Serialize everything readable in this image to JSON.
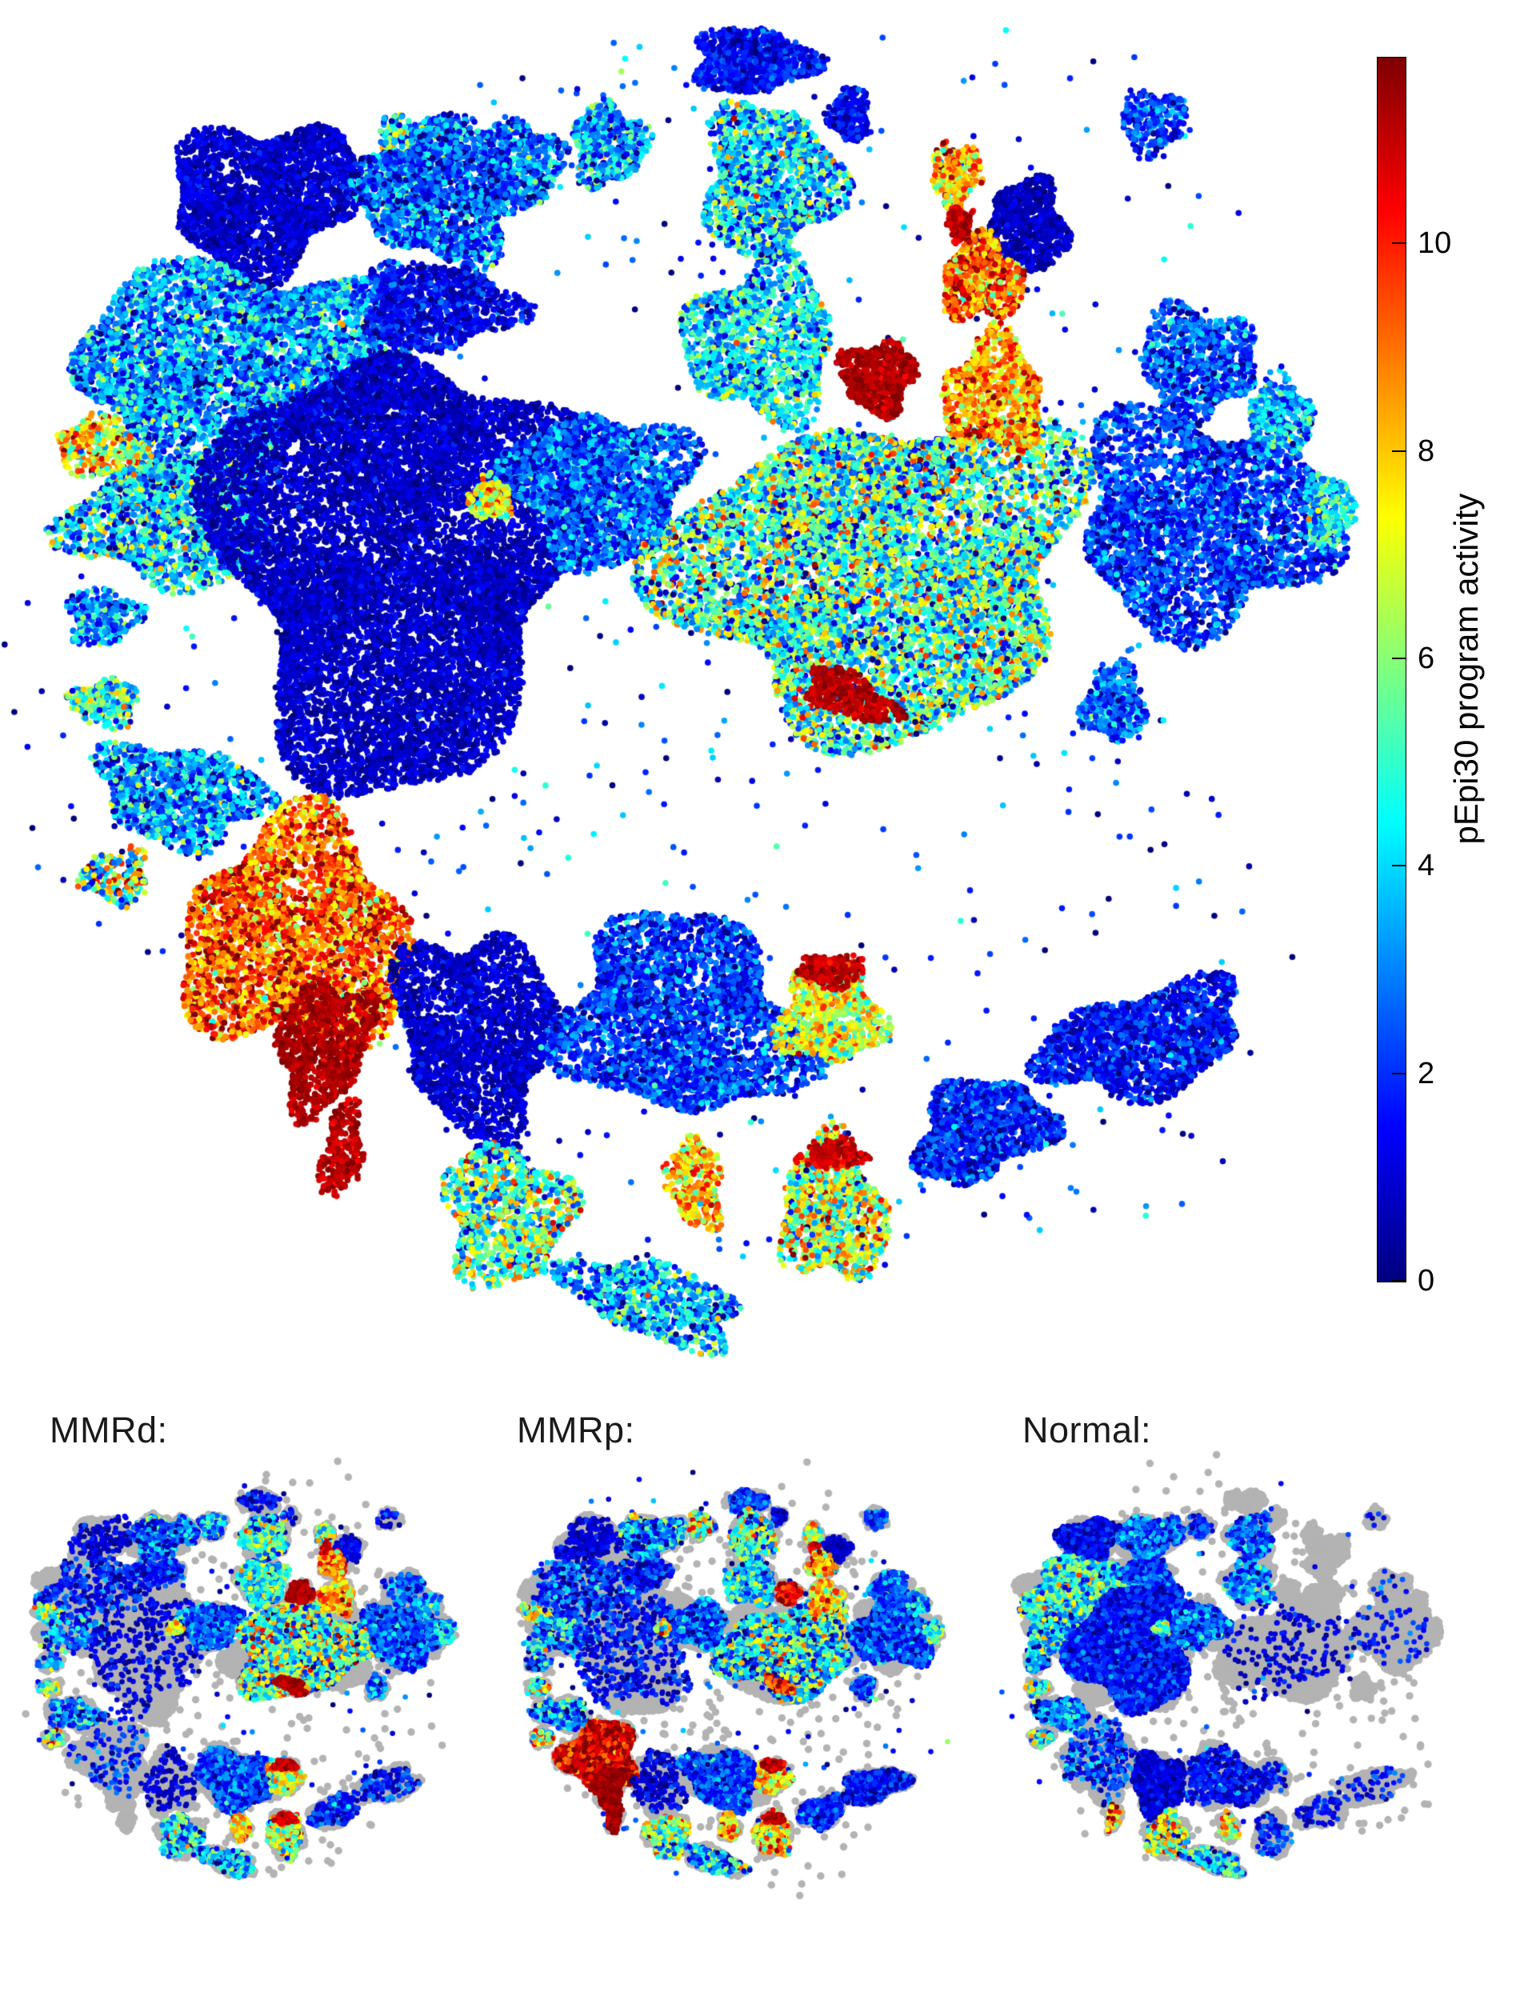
{
  "chart_data": {
    "type": "scatter",
    "title": "",
    "colorbar": {
      "label": "pEpi30 program activity",
      "vmin": 0,
      "vmax": 11.8,
      "ticks": [
        0,
        2,
        4,
        6,
        8,
        10
      ],
      "colormap": "jet"
    },
    "unselected_color": "#b3b3b3",
    "point_color_model": "jet(value/vmax)",
    "clusters": [
      [
        0.5,
        0.48,
        760,
        800,
        0,
        700,
        2.0,
        1.5
      ],
      [
        0.54,
        0.043,
        75,
        40,
        0,
        900,
        1.5,
        0.8
      ],
      [
        0.614,
        0.082,
        26,
        34,
        0,
        250,
        1.3,
        0.7
      ],
      [
        0.43,
        0.104,
        46,
        52,
        0,
        550,
        3.5,
        1.8
      ],
      [
        0.284,
        0.116,
        48,
        62,
        0,
        650,
        4.5,
        2.3
      ],
      [
        0.362,
        0.119,
        52,
        58,
        0,
        600,
        2.8,
        1.5
      ],
      [
        0.168,
        0.142,
        118,
        92,
        -15,
        2600,
        0.9,
        0.5
      ],
      [
        0.301,
        0.139,
        96,
        86,
        0,
        1700,
        2.3,
        1.4
      ],
      [
        0.695,
        0.125,
        31,
        40,
        0,
        320,
        8.0,
        1.5
      ],
      [
        0.749,
        0.163,
        52,
        56,
        0,
        800,
        0.7,
        0.5
      ],
      [
        0.698,
        0.161,
        16,
        22,
        0,
        120,
        11.0,
        0.5
      ],
      [
        0.715,
        0.202,
        50,
        52,
        0,
        650,
        9.0,
        1.6
      ],
      [
        0.149,
        0.264,
        212,
        128,
        -8,
        5200,
        3.2,
        1.6
      ],
      [
        0.047,
        0.326,
        62,
        38,
        20,
        420,
        7.5,
        2.0
      ],
      [
        0.102,
        0.376,
        132,
        82,
        -5,
        2100,
        4.0,
        2.0
      ],
      [
        0.271,
        0.406,
        220,
        272,
        5,
        11000,
        0.8,
        0.5
      ],
      [
        0.301,
        0.221,
        98,
        54,
        0,
        1000,
        1.3,
        0.8
      ],
      [
        0.425,
        0.352,
        112,
        95,
        0,
        2100,
        2.4,
        1.3
      ],
      [
        0.34,
        0.361,
        27,
        27,
        0,
        160,
        7.0,
        1.5
      ],
      [
        0.637,
        0.414,
        255,
        195,
        -10,
        8500,
        5.0,
        2.4
      ],
      [
        0.636,
        0.272,
        46,
        44,
        0,
        700,
        11.3,
        0.4
      ],
      [
        0.724,
        0.285,
        62,
        72,
        0,
        850,
        8.5,
        1.5
      ],
      [
        0.547,
        0.246,
        92,
        98,
        0,
        1500,
        4.0,
        1.7
      ],
      [
        0.879,
        0.262,
        72,
        72,
        0,
        900,
        2.3,
        1.2
      ],
      [
        0.883,
        0.378,
        158,
        132,
        10,
        3200,
        2.0,
        1.1
      ],
      [
        0.98,
        0.369,
        30,
        47,
        0,
        260,
        4.5,
        1.5
      ],
      [
        0.104,
        0.575,
        106,
        62,
        10,
        1200,
        3.0,
        1.7
      ],
      [
        0.193,
        0.679,
        142,
        142,
        0,
        3300,
        9.3,
        1.6
      ],
      [
        0.213,
        0.757,
        55,
        85,
        15,
        900,
        11.3,
        0.4
      ],
      [
        0.227,
        0.834,
        24,
        62,
        10,
        260,
        11.2,
        0.5
      ],
      [
        0.331,
        0.749,
        97,
        132,
        -10,
        2300,
        0.9,
        0.5
      ],
      [
        0.486,
        0.737,
        152,
        122,
        15,
        3300,
        2.0,
        1.1
      ],
      [
        0.599,
        0.734,
        64,
        64,
        0,
        900,
        7.0,
        1.6
      ],
      [
        0.601,
        0.703,
        42,
        20,
        0,
        220,
        11.0,
        0.5
      ],
      [
        0.496,
        0.857,
        34,
        58,
        -12,
        380,
        8.0,
        1.5
      ],
      [
        0.352,
        0.88,
        78,
        88,
        0,
        1100,
        5.5,
        2.2
      ],
      [
        0.463,
        0.942,
        118,
        46,
        18,
        850,
        3.5,
        1.8
      ],
      [
        0.601,
        0.877,
        65,
        90,
        -10,
        1200,
        6.5,
        2.2
      ],
      [
        0.601,
        0.836,
        40,
        20,
        0,
        200,
        11.0,
        0.5
      ],
      [
        0.715,
        0.819,
        88,
        60,
        -20,
        1300,
        1.8,
        1.0
      ],
      [
        0.838,
        0.754,
        130,
        65,
        -15,
        1800,
        1.5,
        0.9
      ],
      [
        0.815,
        0.509,
        38,
        48,
        0,
        420,
        2.5,
        1.2
      ],
      [
        0.942,
        0.301,
        40,
        50,
        0,
        350,
        3.5,
        1.5
      ],
      [
        0.615,
        0.504,
        62,
        26,
        25,
        380,
        11.2,
        0.4
      ],
      [
        0.045,
        0.446,
        45,
        35,
        0,
        300,
        3.0,
        1.5
      ],
      [
        0.047,
        0.509,
        42,
        30,
        0,
        260,
        5.0,
        2.0
      ],
      [
        0.055,
        0.635,
        42,
        35,
        0,
        220,
        6.0,
        3.0
      ],
      [
        0.845,
        0.087,
        40,
        40,
        0,
        260,
        2.0,
        1.0
      ],
      [
        0.553,
        0.13,
        85,
        95,
        0,
        1500,
        4.0,
        2.0
      ]
    ],
    "panels": [
      {
        "id": "main",
        "label": "",
        "mode": "all"
      },
      {
        "id": "mmrd",
        "label": "MMRd:",
        "mode": "overlay",
        "overlay": [
          [
            0,
            0.3,
            1.5,
            1.0
          ],
          [
            1,
            0.15,
            1.5,
            0.8
          ],
          [
            2,
            0.15,
            1.3,
            0.7
          ],
          [
            3,
            0.6,
            3.5,
            1.8
          ],
          [
            4,
            0.6,
            5.0,
            2.3
          ],
          [
            5,
            0.5,
            3.0,
            1.5
          ],
          [
            6,
            0.12,
            1.0,
            0.6
          ],
          [
            7,
            0.3,
            2.5,
            1.4
          ],
          [
            8,
            0.6,
            6.0,
            2.0
          ],
          [
            9,
            0.25,
            1.0,
            0.6
          ],
          [
            10,
            0.8,
            11.0,
            0.5
          ],
          [
            11,
            0.85,
            9.0,
            1.6
          ],
          [
            12,
            0.12,
            1.8,
            1.0
          ],
          [
            13,
            0.4,
            6.0,
            2.0
          ],
          [
            14,
            0.15,
            2.5,
            1.5
          ],
          [
            15,
            0.06,
            1.0,
            0.6
          ],
          [
            16,
            0.3,
            1.5,
            0.8
          ],
          [
            17,
            0.7,
            2.5,
            1.3
          ],
          [
            18,
            1.0,
            7.0,
            1.5
          ],
          [
            19,
            0.85,
            5.5,
            2.6
          ],
          [
            20,
            0.95,
            11.3,
            0.4
          ],
          [
            21,
            0.9,
            8.5,
            1.5
          ],
          [
            22,
            0.8,
            4.5,
            1.7
          ],
          [
            23,
            0.3,
            2.3,
            1.2
          ],
          [
            24,
            0.55,
            2.2,
            1.1
          ],
          [
            25,
            0.8,
            4.5,
            1.5
          ],
          [
            26,
            0.3,
            3.0,
            1.7
          ],
          [
            27,
            0.06,
            2.0,
            1.0
          ],
          [
            28,
            0.03,
            2.0,
            1.0
          ],
          [
            30,
            0.1,
            1.0,
            0.5
          ],
          [
            31,
            0.8,
            2.2,
            1.2
          ],
          [
            32,
            0.9,
            7.0,
            1.6
          ],
          [
            33,
            0.9,
            11.0,
            0.5
          ],
          [
            34,
            0.6,
            8.0,
            1.5
          ],
          [
            35,
            0.55,
            4.0,
            2.0
          ],
          [
            36,
            0.5,
            3.5,
            1.8
          ],
          [
            37,
            0.6,
            6.5,
            2.2
          ],
          [
            38,
            0.6,
            11.0,
            0.5
          ],
          [
            39,
            0.3,
            1.8,
            1.0
          ],
          [
            40,
            0.15,
            1.5,
            0.9
          ],
          [
            41,
            0.4,
            2.5,
            1.2
          ],
          [
            42,
            0.4,
            3.5,
            1.5
          ],
          [
            43,
            0.9,
            11.2,
            0.4
          ],
          [
            44,
            0.2,
            3.0,
            1.5
          ],
          [
            45,
            0.3,
            5.0,
            2.0
          ],
          [
            46,
            0.3,
            6.0,
            3.0
          ],
          [
            47,
            0.2,
            1.5,
            1.0
          ],
          [
            48,
            0.6,
            4.5,
            2.0
          ]
        ]
      },
      {
        "id": "mmrp",
        "label": "MMRp:",
        "mode": "overlay",
        "overlay": [
          [
            0,
            0.4,
            2.0,
            1.5
          ],
          [
            1,
            0.5,
            2.0,
            1.0
          ],
          [
            2,
            0.5,
            1.5,
            0.8
          ],
          [
            3,
            0.85,
            6.0,
            2.5
          ],
          [
            4,
            0.85,
            6.0,
            2.5
          ],
          [
            5,
            0.8,
            3.5,
            2.0
          ],
          [
            6,
            0.2,
            1.0,
            0.6
          ],
          [
            7,
            0.8,
            3.0,
            1.6
          ],
          [
            8,
            0.7,
            7.0,
            2.0
          ],
          [
            9,
            0.5,
            0.8,
            0.5
          ],
          [
            10,
            0.8,
            11.0,
            0.5
          ],
          [
            11,
            0.7,
            8.0,
            2.0
          ],
          [
            12,
            0.2,
            2.0,
            1.2
          ],
          [
            13,
            0.5,
            7.0,
            2.0
          ],
          [
            14,
            0.25,
            3.0,
            1.8
          ],
          [
            15,
            0.1,
            1.5,
            0.9
          ],
          [
            16,
            0.5,
            1.5,
            0.9
          ],
          [
            17,
            0.8,
            2.4,
            1.3
          ],
          [
            18,
            1.0,
            7.0,
            1.5
          ],
          [
            19,
            0.7,
            4.5,
            2.4
          ],
          [
            20,
            0.5,
            10.5,
            1.0
          ],
          [
            21,
            0.8,
            8.0,
            1.8
          ],
          [
            22,
            0.8,
            4.0,
            1.7
          ],
          [
            23,
            0.9,
            2.2,
            1.2
          ],
          [
            24,
            0.9,
            2.1,
            1.1
          ],
          [
            25,
            0.8,
            4.5,
            1.5
          ],
          [
            26,
            0.4,
            3.0,
            1.7
          ],
          [
            27,
            1.0,
            10.8,
            1.1
          ],
          [
            28,
            1.0,
            11.5,
            0.3
          ],
          [
            29,
            1.0,
            11.4,
            0.4
          ],
          [
            30,
            0.2,
            1.0,
            0.6
          ],
          [
            31,
            0.9,
            2.2,
            1.2
          ],
          [
            32,
            1.0,
            7.5,
            1.6
          ],
          [
            33,
            1.0,
            11.0,
            0.5
          ],
          [
            34,
            0.7,
            8.0,
            1.5
          ],
          [
            35,
            0.8,
            6.0,
            2.2
          ],
          [
            36,
            0.6,
            3.5,
            1.8
          ],
          [
            37,
            0.85,
            8.0,
            1.8
          ],
          [
            38,
            0.85,
            11.0,
            0.5
          ],
          [
            39,
            0.8,
            1.8,
            1.0
          ],
          [
            40,
            0.8,
            1.5,
            0.9
          ],
          [
            41,
            0.6,
            2.5,
            1.2
          ],
          [
            42,
            0.6,
            3.5,
            1.5
          ],
          [
            43,
            0.5,
            10.0,
            1.0
          ],
          [
            44,
            0.4,
            3.0,
            1.5
          ],
          [
            45,
            0.5,
            5.0,
            2.0
          ],
          [
            46,
            0.5,
            6.0,
            3.0
          ],
          [
            47,
            0.5,
            2.0,
            1.0
          ],
          [
            48,
            0.8,
            5.0,
            2.2
          ]
        ]
      },
      {
        "id": "normal",
        "label": "Normal:",
        "mode": "overlay",
        "overlay": [
          [
            0,
            0.15,
            2.0,
            1.2
          ],
          [
            3,
            0.2,
            2.0,
            1.0
          ],
          [
            4,
            0.5,
            3.0,
            1.5
          ],
          [
            5,
            0.5,
            2.5,
            1.2
          ],
          [
            6,
            0.9,
            1.2,
            0.7
          ],
          [
            7,
            0.85,
            2.5,
            1.2
          ],
          [
            12,
            0.95,
            4.8,
            1.8
          ],
          [
            13,
            0.9,
            5.0,
            2.0
          ],
          [
            14,
            0.9,
            4.0,
            2.0
          ],
          [
            15,
            0.95,
            1.6,
            0.9
          ],
          [
            16,
            0.8,
            2.0,
            1.0
          ],
          [
            17,
            0.9,
            2.5,
            1.2
          ],
          [
            18,
            1.0,
            5.0,
            1.5
          ],
          [
            19,
            0.04,
            1.0,
            0.6
          ],
          [
            22,
            0.3,
            3.0,
            1.5
          ],
          [
            23,
            0.03,
            1.5,
            0.8
          ],
          [
            24,
            0.04,
            1.5,
            0.8
          ],
          [
            26,
            0.7,
            3.0,
            1.5
          ],
          [
            27,
            0.15,
            2.0,
            1.2
          ],
          [
            28,
            0.05,
            2.0,
            1.0
          ],
          [
            29,
            0.3,
            9.0,
            2.0
          ],
          [
            30,
            0.85,
            1.0,
            0.6
          ],
          [
            31,
            0.35,
            1.5,
            0.9
          ],
          [
            32,
            0.1,
            2.0,
            1.0
          ],
          [
            34,
            0.4,
            7.0,
            2.0
          ],
          [
            35,
            0.85,
            6.5,
            2.4
          ],
          [
            36,
            0.5,
            4.0,
            2.0
          ],
          [
            37,
            0.15,
            2.0,
            1.0
          ],
          [
            39,
            0.1,
            1.5,
            0.8
          ],
          [
            40,
            0.05,
            1.5,
            0.8
          ],
          [
            44,
            0.8,
            3.0,
            1.5
          ],
          [
            45,
            0.8,
            5.0,
            2.0
          ],
          [
            46,
            0.6,
            5.0,
            2.5
          ],
          [
            47,
            0.05,
            1.5,
            0.8
          ],
          [
            48,
            0.3,
            2.5,
            1.2
          ]
        ]
      }
    ]
  }
}
